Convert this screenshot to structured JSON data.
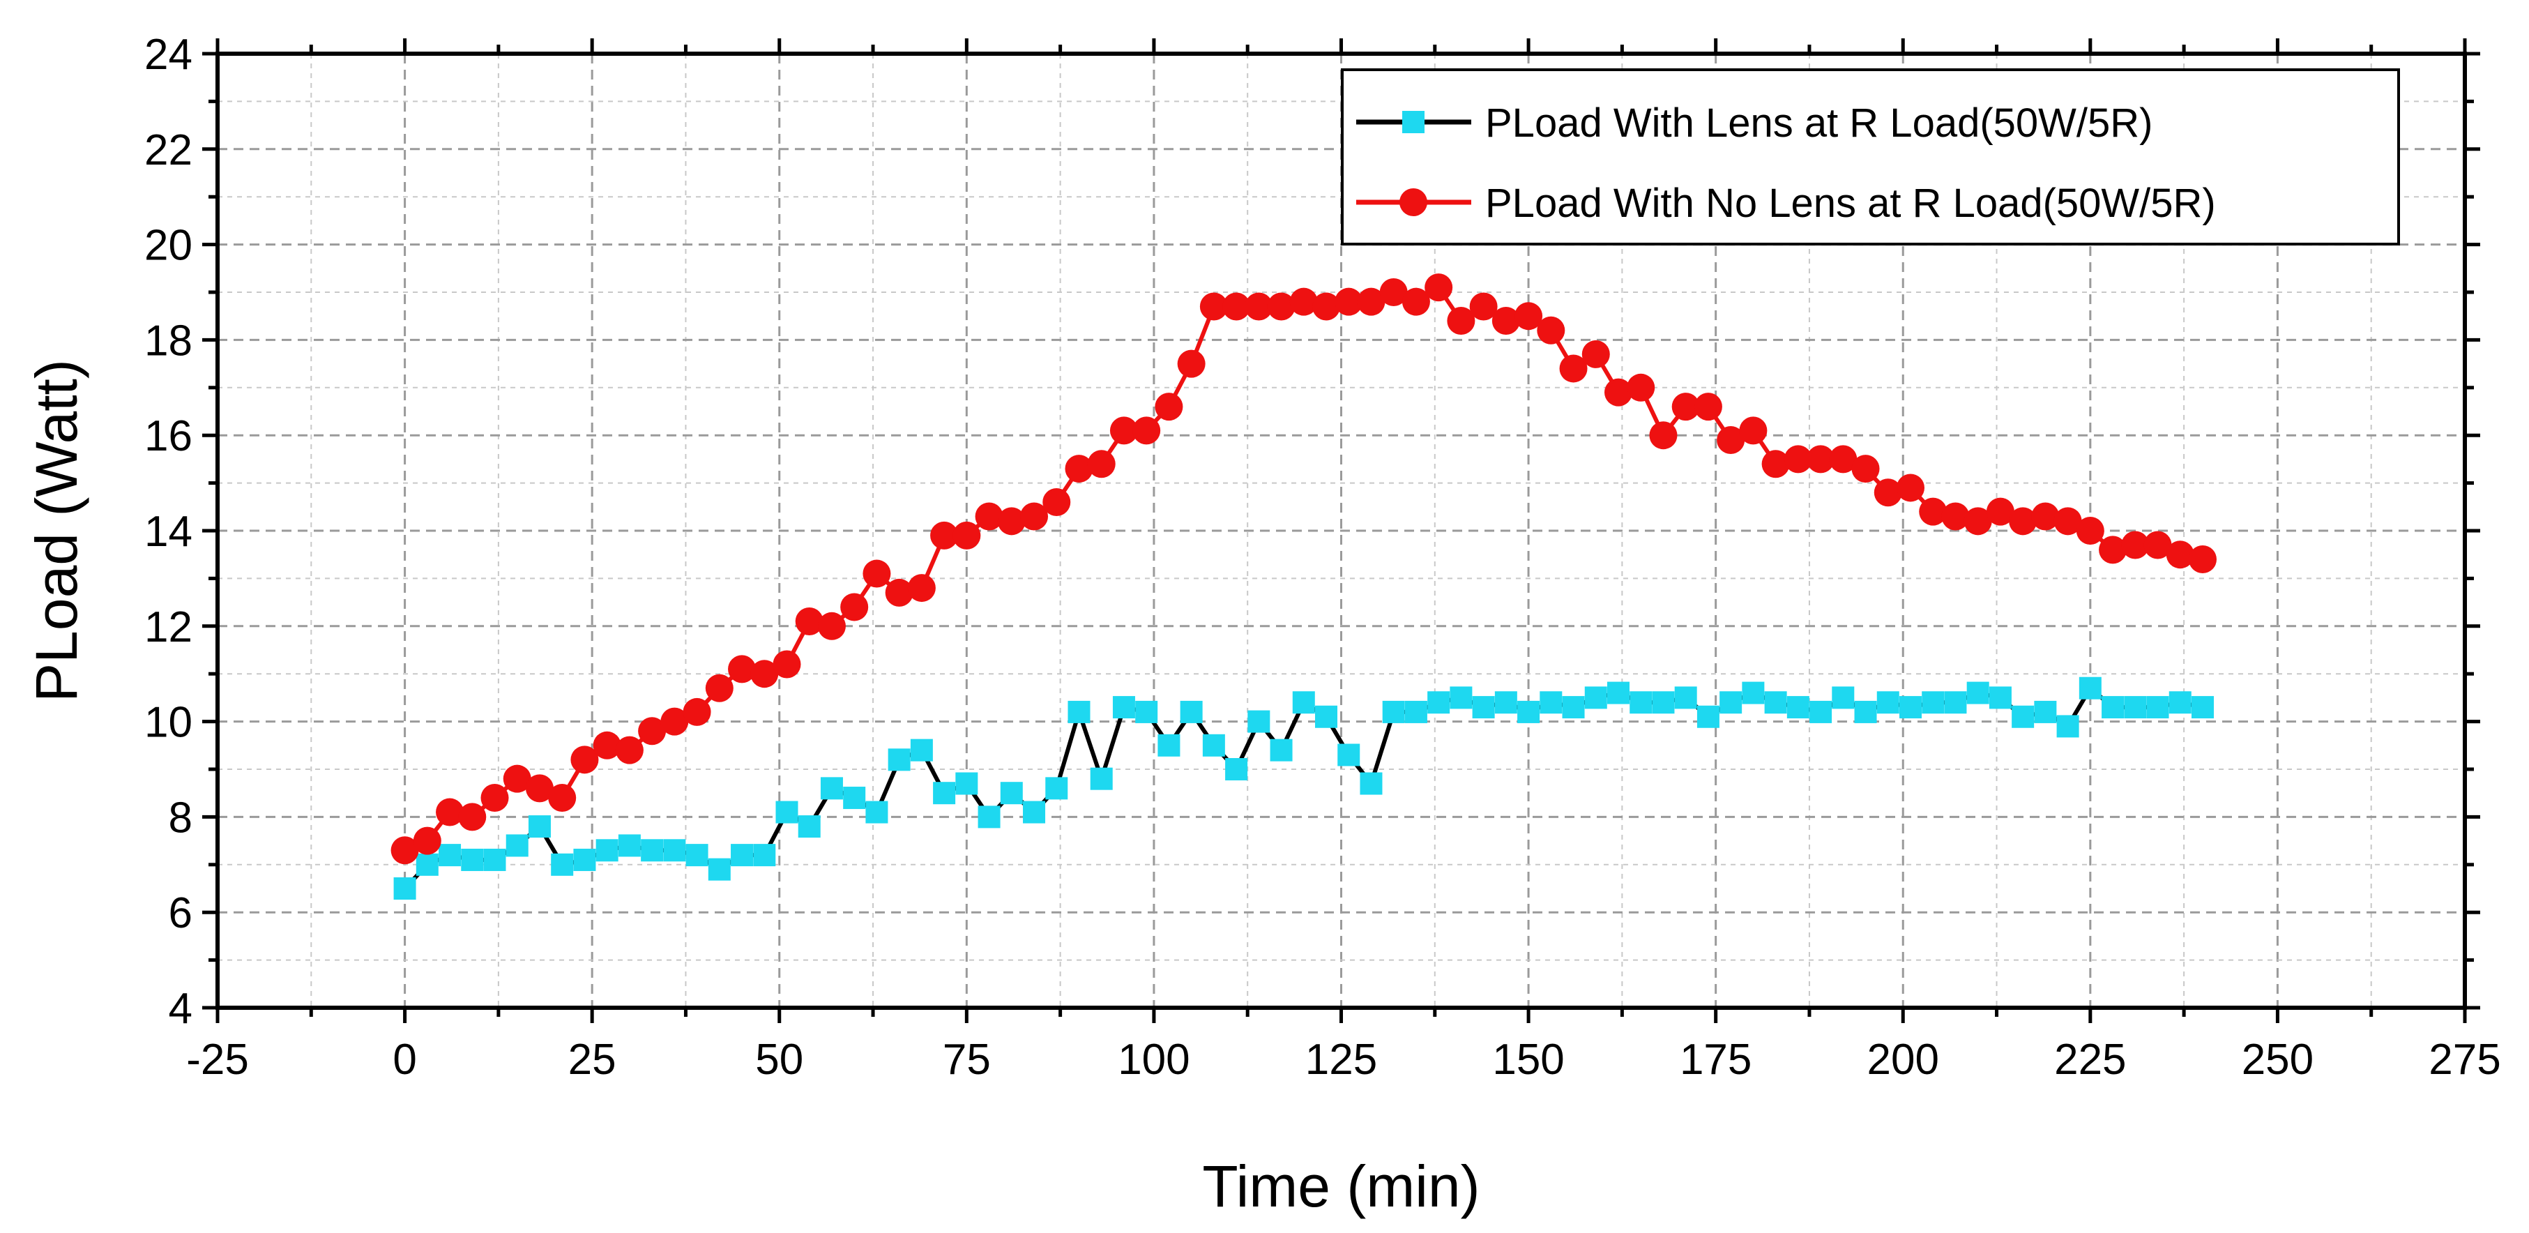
{
  "chart_data": {
    "type": "line",
    "xlabel": "Time (min)",
    "ylabel": "PLoad (Watt)",
    "xlim": [
      -25,
      275
    ],
    "ylim": [
      4,
      24
    ],
    "x_ticks": [
      "-25",
      "0",
      "25",
      "50",
      "75",
      "100",
      "125",
      "150",
      "175",
      "200",
      "225",
      "250",
      "275"
    ],
    "y_ticks": [
      "4",
      "6",
      "8",
      "10",
      "12",
      "14",
      "16",
      "18",
      "20",
      "22",
      "24"
    ],
    "grid": true,
    "legend_position": "top-right",
    "series": [
      {
        "name": "PLoad With Lens at R Load(50W/5R)",
        "marker": "square",
        "marker_color": "#1ed8f0",
        "line_color": "#000000",
        "x": [
          0,
          3,
          6,
          9,
          12,
          15,
          18,
          21,
          24,
          27,
          30,
          33,
          36,
          39,
          42,
          45,
          48,
          51,
          54,
          57,
          60,
          63,
          66,
          69,
          72,
          75,
          78,
          81,
          84,
          87,
          90,
          93,
          96,
          99,
          102,
          105,
          108,
          111,
          114,
          117,
          120,
          123,
          126,
          129,
          132,
          135,
          138,
          141,
          144,
          147,
          150,
          153,
          156,
          159,
          162,
          165,
          168,
          171,
          174,
          177,
          180,
          183,
          186,
          189,
          192,
          195,
          198,
          201,
          204,
          207,
          210,
          213,
          216,
          219,
          222,
          225,
          228,
          231,
          234,
          237,
          240
        ],
        "y": [
          6.5,
          7.0,
          7.2,
          7.1,
          7.1,
          7.4,
          7.8,
          7.0,
          7.1,
          7.3,
          7.4,
          7.3,
          7.3,
          7.2,
          6.9,
          7.2,
          7.2,
          8.1,
          7.8,
          8.6,
          8.4,
          8.1,
          9.2,
          9.4,
          8.5,
          8.7,
          8.0,
          8.5,
          8.1,
          8.6,
          10.2,
          8.8,
          10.3,
          10.2,
          9.5,
          10.2,
          9.5,
          9.0,
          10.0,
          9.4,
          10.4,
          10.1,
          9.3,
          8.7,
          10.2,
          10.2,
          10.4,
          10.5,
          10.3,
          10.4,
          10.2,
          10.4,
          10.3,
          10.5,
          10.6,
          10.4,
          10.4,
          10.5,
          10.1,
          10.4,
          10.6,
          10.4,
          10.3,
          10.2,
          10.5,
          10.2,
          10.4,
          10.3,
          10.4,
          10.4,
          10.6,
          10.5,
          10.1,
          10.2,
          9.9,
          10.7,
          10.3,
          10.3,
          10.3,
          10.4,
          10.3
        ]
      },
      {
        "name": "PLoad With No Lens at R Load(50W/5R)",
        "marker": "circle",
        "marker_color": "#ee1111",
        "line_color": "#ee1111",
        "x": [
          0,
          3,
          6,
          9,
          12,
          15,
          18,
          21,
          24,
          27,
          30,
          33,
          36,
          39,
          42,
          45,
          48,
          51,
          54,
          57,
          60,
          63,
          66,
          69,
          72,
          75,
          78,
          81,
          84,
          87,
          90,
          93,
          96,
          99,
          102,
          105,
          108,
          111,
          114,
          117,
          120,
          123,
          126,
          129,
          132,
          135,
          138,
          141,
          144,
          147,
          150,
          153,
          156,
          159,
          162,
          165,
          168,
          171,
          174,
          177,
          180,
          183,
          186,
          189,
          192,
          195,
          198,
          201,
          204,
          207,
          210,
          213,
          216,
          219,
          222,
          225,
          228,
          231,
          234,
          237,
          240
        ],
        "y": [
          7.3,
          7.5,
          8.1,
          8.0,
          8.4,
          8.8,
          8.6,
          8.4,
          9.2,
          9.5,
          9.4,
          9.8,
          10.0,
          10.2,
          10.7,
          11.1,
          11.0,
          11.2,
          12.1,
          12.0,
          12.4,
          13.1,
          12.7,
          12.8,
          13.9,
          13.9,
          14.3,
          14.2,
          14.3,
          14.6,
          15.3,
          15.4,
          16.1,
          16.1,
          16.6,
          17.5,
          18.7,
          18.7,
          18.7,
          18.7,
          18.8,
          18.7,
          18.8,
          18.8,
          19.0,
          18.8,
          19.1,
          18.4,
          18.7,
          18.4,
          18.5,
          18.2,
          17.4,
          17.7,
          16.9,
          17.0,
          16.0,
          16.6,
          16.6,
          15.9,
          16.1,
          15.4,
          15.5,
          15.5,
          15.5,
          15.3,
          14.8,
          14.9,
          14.4,
          14.3,
          14.2,
          14.4,
          14.2,
          14.3,
          14.2,
          14.0,
          13.6,
          13.7,
          13.7,
          13.5,
          13.4
        ]
      }
    ]
  }
}
